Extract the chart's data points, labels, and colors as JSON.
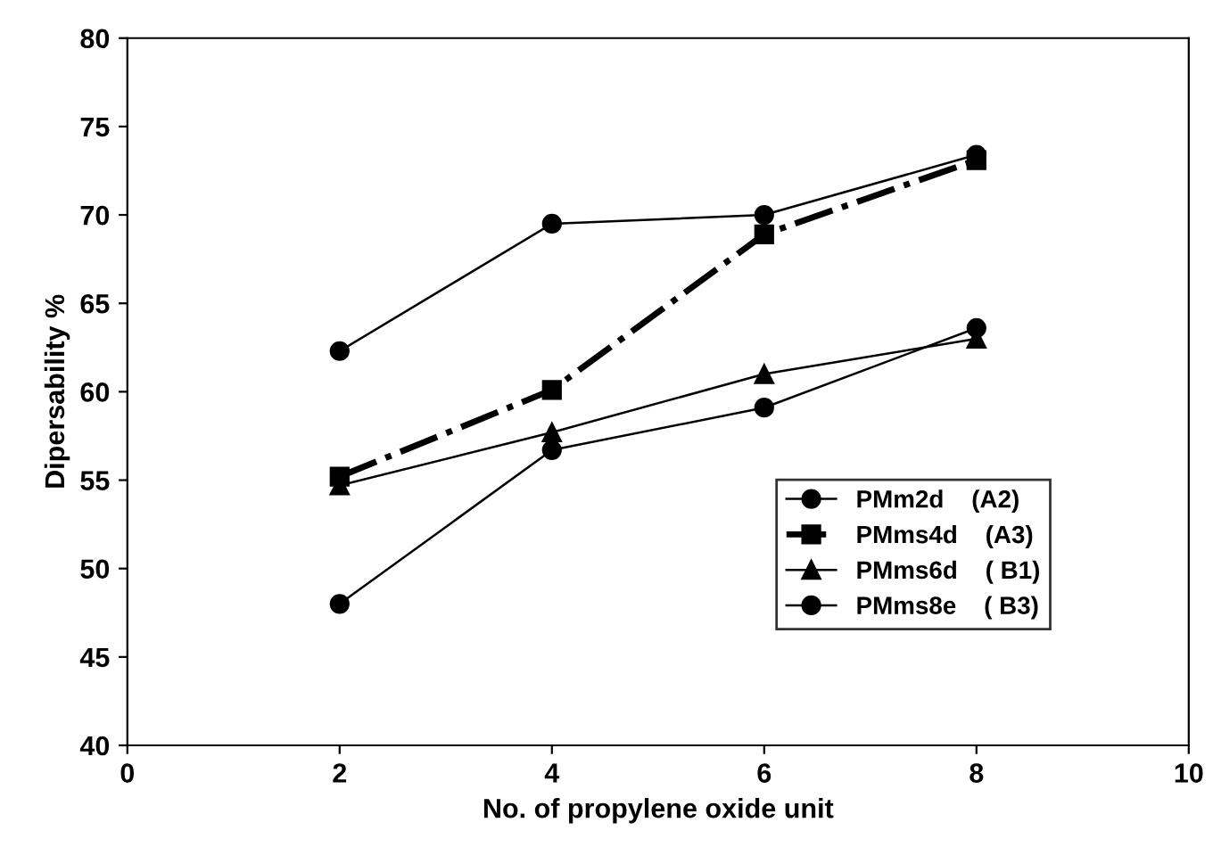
{
  "chart_data": {
    "type": "line",
    "xlabel": "No. of propylene oxide unit",
    "ylabel": "Dipersability %",
    "x": [
      2,
      4,
      6,
      8
    ],
    "xlim": [
      0,
      10
    ],
    "xticks": [
      0,
      2,
      4,
      6,
      8,
      10
    ],
    "ylim": [
      40,
      80
    ],
    "yticks": [
      40,
      45,
      50,
      55,
      60,
      65,
      70,
      75,
      80
    ],
    "grid": false,
    "legend": "right",
    "series": [
      {
        "name": "PMm2d    (A2)",
        "color": "#000000",
        "marker": "circle",
        "line_style": "solid",
        "values": [
          48.0,
          56.7,
          59.1,
          63.6
        ]
      },
      {
        "name": "PMms4d    (A3)",
        "color": "#000000",
        "marker": "square",
        "line_style": "dashdot",
        "values": [
          55.2,
          60.1,
          68.9,
          73.1
        ]
      },
      {
        "name": "PMms6d    ( B1)",
        "color": "#000000",
        "marker": "triangle",
        "line_style": "solid",
        "values": [
          54.7,
          57.7,
          61.0,
          63.0
        ]
      },
      {
        "name": "PMms8e    ( B3)",
        "color": "#000000",
        "marker": "circle",
        "line_style": "solid",
        "values": [
          62.3,
          69.5,
          70.0,
          73.4
        ]
      }
    ]
  }
}
